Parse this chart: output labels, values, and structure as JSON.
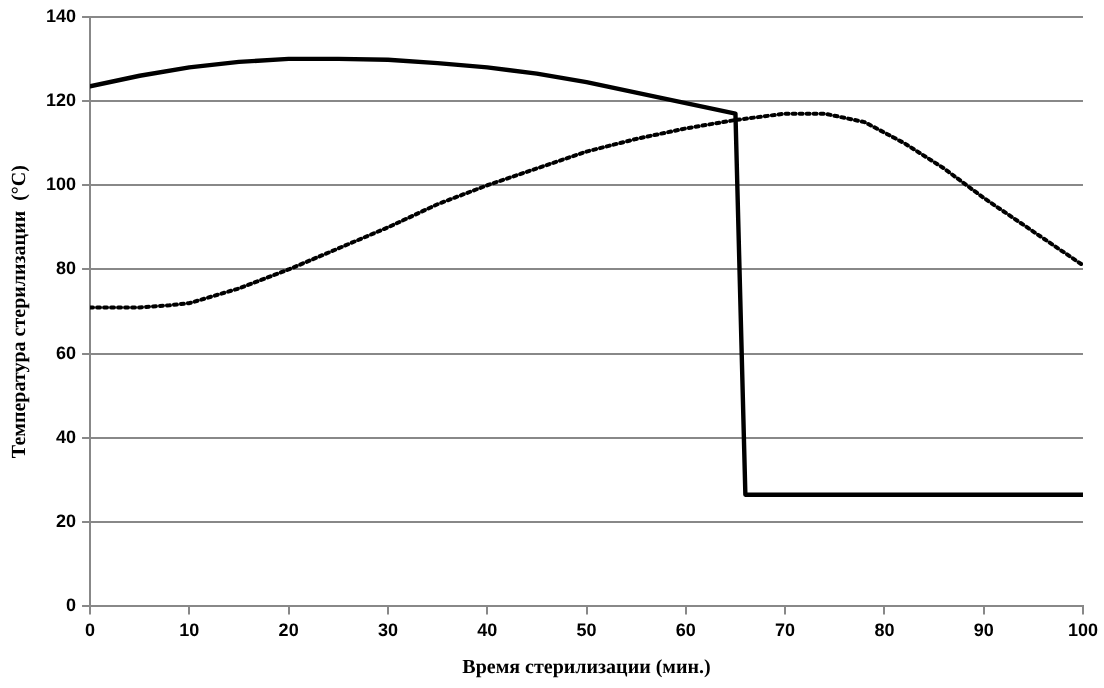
{
  "chart_data": {
    "type": "line",
    "xlabel": "Время стерилизации (мин.)",
    "ylabel": "Температура стерилизации  (°С)",
    "xlim": [
      0,
      100
    ],
    "xticks": [
      0,
      10,
      20,
      30,
      40,
      50,
      60,
      70,
      80,
      90,
      100
    ],
    "ylim": [
      0,
      140
    ],
    "yticks": [
      0,
      20,
      40,
      60,
      80,
      100,
      120,
      140
    ],
    "grid": "y",
    "legend": false,
    "marker": "none",
    "series": [
      {
        "color": "#000000",
        "line_style": "solid",
        "x": [
          0,
          5,
          10,
          15,
          20,
          25,
          30,
          35,
          40,
          45,
          50,
          55,
          60,
          65,
          66,
          100
        ],
        "values": [
          123.5,
          126,
          128,
          129.3,
          130,
          130,
          129.8,
          129,
          128,
          126.5,
          124.5,
          122,
          119.5,
          117,
          26.5,
          26.5
        ]
      },
      {
        "color": "#000000",
        "line_style": "dotted",
        "x": [
          0,
          5,
          8,
          10,
          15,
          20,
          25,
          30,
          35,
          40,
          45,
          50,
          55,
          60,
          65,
          70,
          74,
          78,
          82,
          86,
          90,
          95,
          100
        ],
        "values": [
          71,
          71,
          71.5,
          72,
          75.5,
          80,
          85,
          90,
          95.5,
          100,
          104,
          108,
          111,
          113.5,
          115.5,
          117,
          117,
          115,
          110,
          104,
          97,
          89,
          81
        ]
      }
    ]
  }
}
